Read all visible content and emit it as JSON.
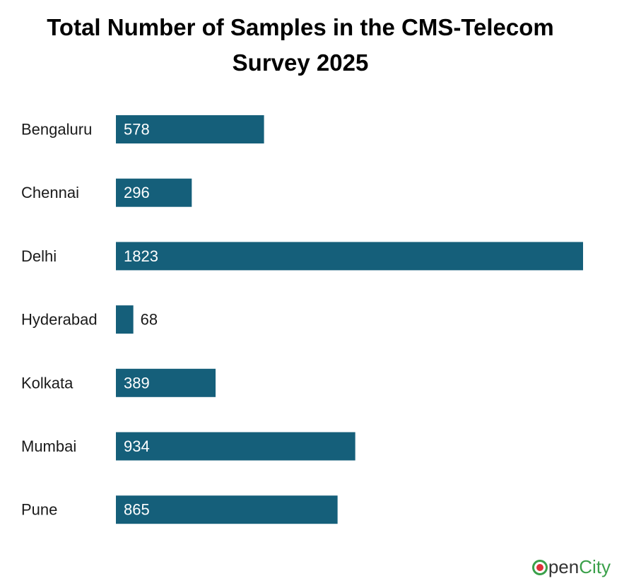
{
  "chart_data": {
    "type": "bar",
    "orientation": "horizontal",
    "title": "Total Number of Samples in the CMS-Telecom Survey 2025",
    "categories": [
      "Bengaluru",
      "Chennai",
      "Delhi",
      "Hyderabad",
      "Kolkata",
      "Mumbai",
      "Pune"
    ],
    "values": [
      578,
      296,
      1823,
      68,
      389,
      934,
      865
    ],
    "value_labels": [
      "578",
      "296",
      "1823",
      "68",
      "389",
      "934",
      "865"
    ],
    "xlabel": "",
    "ylabel": "",
    "xlim": [
      0,
      1823
    ],
    "grid": false,
    "legend": "none",
    "bar_color": "#155f7a"
  },
  "logo": {
    "open": "pen",
    "city": "City"
  }
}
